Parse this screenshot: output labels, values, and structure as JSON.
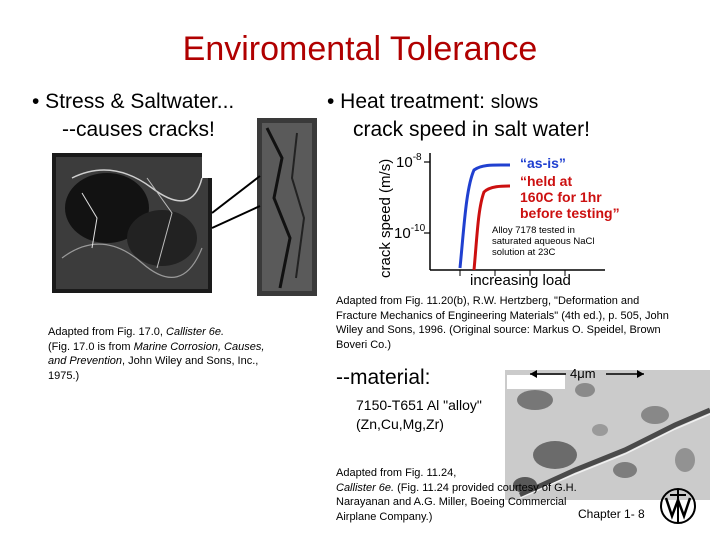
{
  "title": "Enviromental Tolerance",
  "left": {
    "bullet": "• Stress & Saltwater...",
    "sub": "--causes cracks!",
    "caption": {
      "l1_a": "Adapted from Fig. 17.0, ",
      "l1_b": "Callister 6e.",
      "l2_a": "(Fig. 17.0 is from ",
      "l2_b": "Marine Corrosion, Causes,",
      "l3_b": "and Prevention",
      "l3_c": ", John Wiley and Sons, Inc.,",
      "l4": "1975.)"
    }
  },
  "right": {
    "bullet_a": "• Heat treatment:",
    "bullet_b": "slows",
    "sub": "crack speed in salt water!",
    "chart": {
      "ylabel": "crack speed (m/s)",
      "xlabel": "increasing load",
      "ytick_top": "10",
      "ytick_top_exp": "-8",
      "ytick_bottom": "10",
      "ytick_bottom_exp": "-10",
      "label_asis": "“as-is”",
      "label_held_1": "“held at",
      "label_held_2": "160C for 1hr",
      "label_held_3": "before testing”",
      "note_1": "Alloy 7178 tested in",
      "note_2": "saturated aqueous NaCl",
      "note_3": "solution at 23C",
      "color_asis": "#2040d0",
      "color_held": "#cc1010"
    },
    "caption1": {
      "l1": "Adapted from Fig. 11.20(b), R.W. Hertzberg, \"Deformation and",
      "l2": "Fracture Mechanics of Engineering Materials\" (4th ed.), p. 505, John",
      "l3": "Wiley and Sons, 1996.  (Original source:  Markus O. Speidel, Brown",
      "l4": "Boveri Co.)"
    },
    "material": "--material:",
    "alloy_1": "7150-T651 Al \"alloy\"",
    "alloy_2": "(Zn,Cu,Mg,Zr)",
    "scale": "4μm",
    "caption2": {
      "l1": "Adapted from Fig. 11.24,",
      "l2_a": "Callister 6e.",
      "l2_b": " (Fig. 11.24 provided courtesy of G.H.",
      "l3": "Narayanan and A.G. Miller, Boeing Commercial",
      "l4": "Airplane Company.)"
    },
    "footer": "Chapter 1-  8"
  }
}
